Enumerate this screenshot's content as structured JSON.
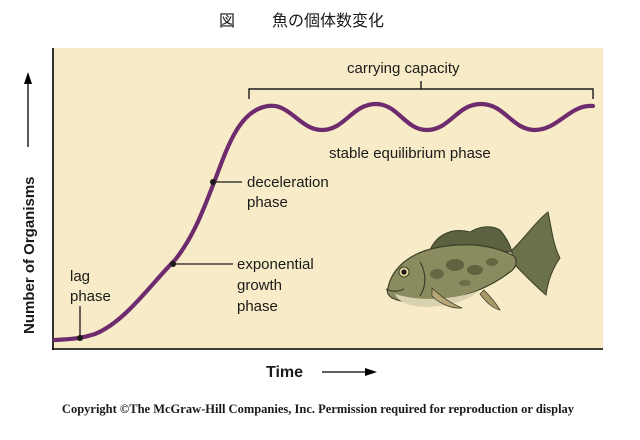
{
  "figure": {
    "caption_label": "図",
    "caption_title": "魚の個体数変化"
  },
  "axes": {
    "y_label": "Number of Organisms",
    "x_label": "Time"
  },
  "annotations": {
    "carrying_capacity": "carrying capacity",
    "stable_equilibrium": "stable equilibrium phase",
    "deceleration_line1": "deceleration",
    "deceleration_line2": "phase",
    "exponential_line1": "exponential",
    "exponential_line2": "growth",
    "exponential_line3": "phase",
    "lag_line1": "lag",
    "lag_line2": "phase"
  },
  "footer": {
    "copyright": "Copyright ©The McGraw-Hill Companies, Inc. Permission required for reproduction or display"
  },
  "colors": {
    "plot_background": "#f8ecc8",
    "curve": "#6e2c6e",
    "axis": "#000000",
    "text": "#1a1a1a"
  },
  "icons": {
    "fish": "bass-fish-illustration"
  }
}
